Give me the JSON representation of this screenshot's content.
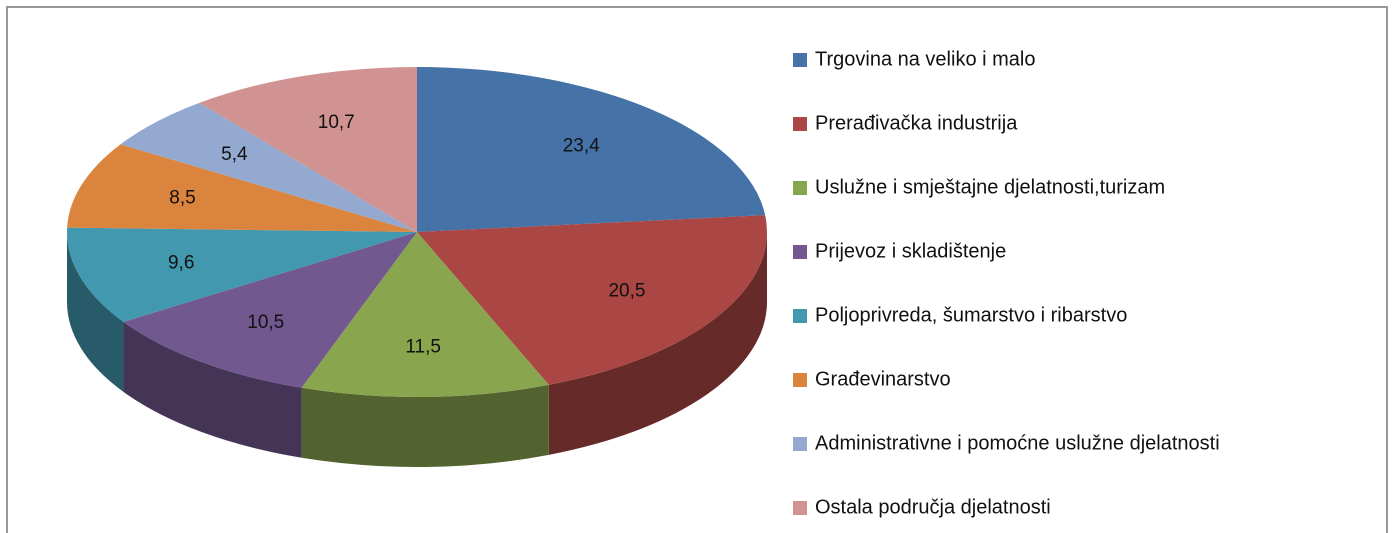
{
  "chart_data": {
    "type": "pie",
    "categories": [
      "Trgovina na veliko i malo",
      "Prerađivačka industrija",
      "Uslužne i smještajne djelatnosti,turizam",
      "Prijevoz i skladištenje",
      "Poljoprivreda, šumarstvo i ribarstvo",
      "Građevinarstvo",
      "Administrativne i pomoćne uslužne djelatnosti",
      "Ostala područja djelatnosti"
    ],
    "values": [
      23.4,
      20.5,
      11.5,
      10.5,
      9.6,
      8.5,
      5.4,
      10.7
    ],
    "value_labels": [
      "23,4",
      "20,5",
      "11,5",
      "10,5",
      "9,6",
      "8,5",
      "5,4",
      "10,7"
    ],
    "colors": [
      "#4572A7",
      "#AA4643",
      "#89A54E",
      "#71588F",
      "#4198AF",
      "#DB843D",
      "#93A9CF",
      "#D19392"
    ],
    "legend": "right"
  }
}
